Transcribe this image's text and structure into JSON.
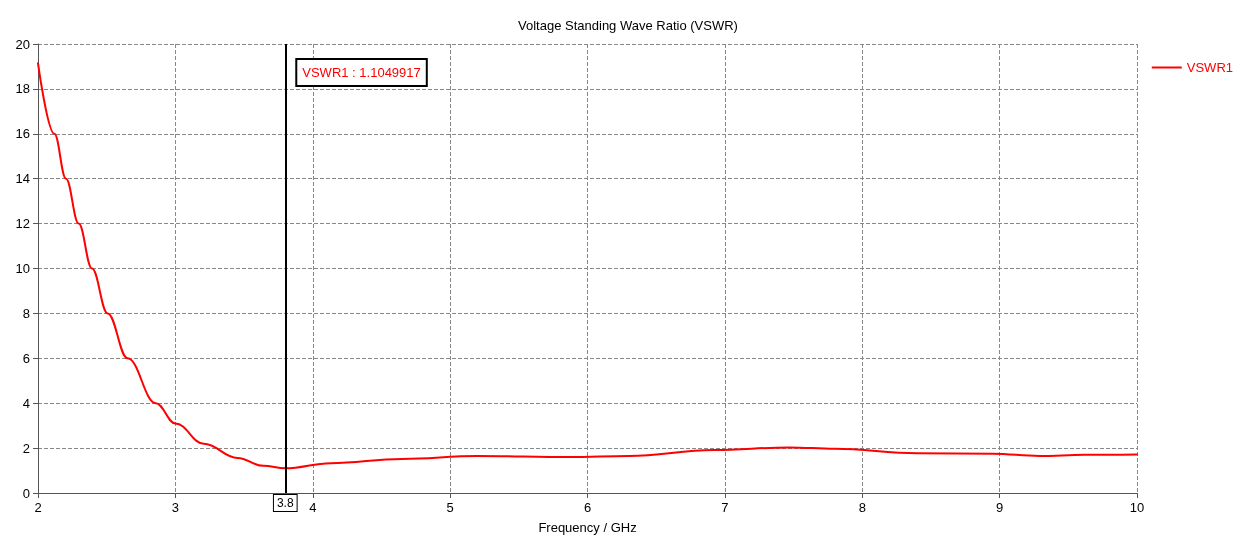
{
  "chart_data": {
    "type": "line",
    "title": "Voltage Standing Wave Ratio (VSWR)",
    "xlabel": "Frequency / GHz",
    "series": [
      {
        "name": "VSWR1",
        "color": "#ff0000",
        "x": [
          2,
          2.119,
          2.204,
          2.296,
          2.393,
          2.507,
          2.652,
          2.858,
          3.0,
          3.207,
          3.452,
          3.64,
          3.8,
          4.13,
          4.65,
          5.2,
          5.87,
          6.3,
          6.92,
          7.47,
          7.8,
          8.4,
          8.95,
          9.29,
          9.62,
          10
        ],
        "values": [
          19.14,
          16,
          14,
          12,
          10,
          8,
          6,
          4,
          3.1,
          2.19,
          1.56,
          1.21,
          1.1,
          1.33,
          1.52,
          1.65,
          1.6,
          1.65,
          1.92,
          2.03,
          1.97,
          1.77,
          1.75,
          1.65,
          1.7,
          1.72
        ]
      }
    ],
    "xlim": [
      2,
      10
    ],
    "xticks": [
      2,
      3,
      4,
      5,
      6,
      7,
      8,
      9,
      10
    ],
    "ylim": [
      0,
      20
    ],
    "yticks": [
      0,
      2,
      4,
      6,
      8,
      10,
      12,
      14,
      16,
      18,
      20
    ],
    "grid": true,
    "legend": "top right",
    "marker": "none",
    "line_style": "solid",
    "ref_lines": [
      {
        "axis": "x",
        "value": 3.8,
        "label": "3.8",
        "color": "#000000"
      }
    ],
    "annotations": [
      "VSWR1 : 1.1049917"
    ]
  }
}
